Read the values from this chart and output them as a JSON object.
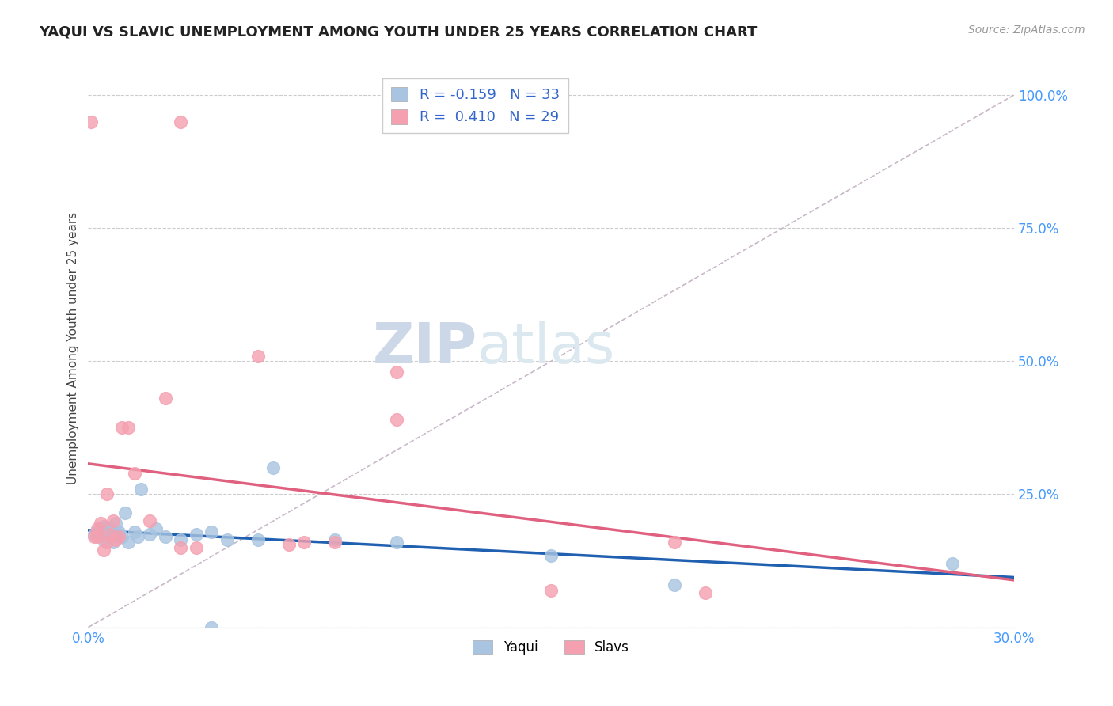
{
  "title": "YAQUI VS SLAVIC UNEMPLOYMENT AMONG YOUTH UNDER 25 YEARS CORRELATION CHART",
  "source": "Source: ZipAtlas.com",
  "ylabel": "Unemployment Among Youth under 25 years",
  "xlim": [
    0.0,
    0.3
  ],
  "ylim": [
    0.0,
    1.05
  ],
  "xticks": [
    0.0,
    0.05,
    0.1,
    0.15,
    0.2,
    0.25,
    0.3
  ],
  "xtick_labels": [
    "0.0%",
    "",
    "",
    "",
    "",
    "",
    "30.0%"
  ],
  "ytick_positions": [
    0.0,
    0.25,
    0.5,
    0.75,
    1.0
  ],
  "ytick_labels": [
    "",
    "25.0%",
    "50.0%",
    "75.0%",
    "100.0%"
  ],
  "legend_R_yaqui": "-0.159",
  "legend_N_yaqui": "33",
  "legend_R_slavs": "0.410",
  "legend_N_slavs": "29",
  "yaqui_color": "#a8c4e0",
  "slavs_color": "#f4a0b0",
  "yaqui_line_color": "#2060b0",
  "slavs_line_color": "#e06080",
  "diagonal_color": "#c8b8c8",
  "background_color": "#ffffff",
  "watermark_zip": "ZIP",
  "watermark_atlas": "atlas",
  "watermark_color": "#ccd8e8",
  "yaqui_x": [
    0.002,
    0.003,
    0.004,
    0.005,
    0.005,
    0.006,
    0.007,
    0.007,
    0.008,
    0.009,
    0.01,
    0.01,
    0.011,
    0.012,
    0.013,
    0.015,
    0.016,
    0.017,
    0.02,
    0.022,
    0.025,
    0.03,
    0.035,
    0.04,
    0.045,
    0.055,
    0.06,
    0.08,
    0.1,
    0.15,
    0.19,
    0.28,
    0.04
  ],
  "yaqui_y": [
    0.175,
    0.18,
    0.185,
    0.19,
    0.165,
    0.17,
    0.175,
    0.185,
    0.16,
    0.195,
    0.18,
    0.175,
    0.17,
    0.215,
    0.16,
    0.18,
    0.17,
    0.26,
    0.175,
    0.185,
    0.17,
    0.165,
    0.175,
    0.18,
    0.165,
    0.165,
    0.3,
    0.165,
    0.16,
    0.135,
    0.08,
    0.12,
    0.0
  ],
  "slavs_x": [
    0.001,
    0.002,
    0.003,
    0.003,
    0.004,
    0.005,
    0.006,
    0.006,
    0.007,
    0.008,
    0.009,
    0.01,
    0.011,
    0.013,
    0.015,
    0.02,
    0.025,
    0.03,
    0.035,
    0.055,
    0.065,
    0.07,
    0.08,
    0.1,
    0.15,
    0.19,
    0.03,
    0.1,
    0.2
  ],
  "slavs_y": [
    0.95,
    0.17,
    0.17,
    0.185,
    0.195,
    0.145,
    0.16,
    0.25,
    0.175,
    0.2,
    0.165,
    0.17,
    0.375,
    0.375,
    0.29,
    0.2,
    0.43,
    0.15,
    0.15,
    0.51,
    0.155,
    0.16,
    0.16,
    0.39,
    0.07,
    0.16,
    0.95,
    0.48,
    0.065
  ]
}
